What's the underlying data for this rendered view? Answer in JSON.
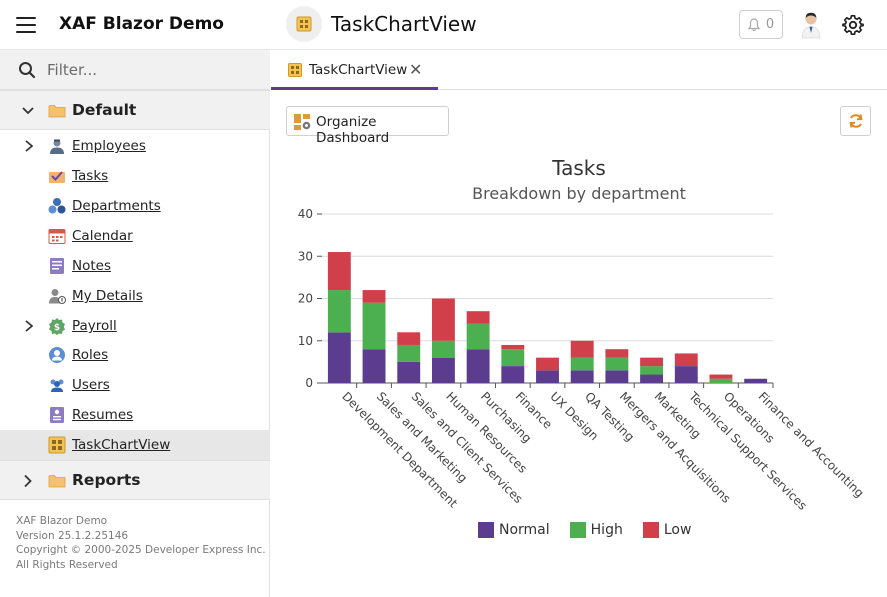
{
  "header": {
    "app_title": "XAF Blazor Demo",
    "view_title": "TaskChartView",
    "notification_count": "0"
  },
  "sidebar": {
    "filter_placeholder": "Filter...",
    "groups": [
      {
        "label": "Default"
      },
      {
        "label": "Reports"
      }
    ],
    "items": [
      {
        "label": "Employees",
        "icon": "employees-icon"
      },
      {
        "label": "Tasks",
        "icon": "tasks-icon"
      },
      {
        "label": "Departments",
        "icon": "departments-icon"
      },
      {
        "label": "Calendar",
        "icon": "calendar-icon"
      },
      {
        "label": "Notes",
        "icon": "notes-icon"
      },
      {
        "label": "My Details",
        "icon": "my-details-icon"
      },
      {
        "label": "Payroll",
        "icon": "payroll-icon"
      },
      {
        "label": "Roles",
        "icon": "roles-icon"
      },
      {
        "label": "Users",
        "icon": "users-icon"
      },
      {
        "label": "Resumes",
        "icon": "resumes-icon"
      },
      {
        "label": "TaskChartView",
        "icon": "chart-view-icon"
      }
    ],
    "footer": {
      "line1": "XAF Blazor Demo",
      "line2": "Version 25.1.2.25146",
      "line3": "Copyright © 2000-2025 Developer Express Inc.",
      "line4": "All Rights Reserved"
    }
  },
  "tabs": [
    {
      "label": "TaskChartView"
    }
  ],
  "toolbar": {
    "organize_label": "Organize Dashboard"
  },
  "colors": {
    "normal": "#5c3c8f",
    "high": "#4caf50",
    "low": "#d13f4b",
    "accent": "#5c3c8f"
  },
  "chart_data": {
    "type": "bar",
    "stacked": true,
    "title": "Tasks",
    "subtitle": "Breakdown by department",
    "xlabel": "",
    "ylabel": "",
    "ylim": [
      0,
      40
    ],
    "yticks": [
      0,
      10,
      20,
      30,
      40
    ],
    "grid": true,
    "legend_position": "bottom",
    "categories": [
      "Development Department",
      "Sales and Marketing",
      "Sales and Client Services",
      "Human Resources",
      "Purchasing",
      "Finance",
      "UX Design",
      "QA Testing",
      "Mergers and Acquisitions",
      "Marketing",
      "Technical Support Services",
      "Operations",
      "Finance and Accounting"
    ],
    "series": [
      {
        "name": "Normal",
        "color": "#5c3c8f",
        "values": [
          12,
          8,
          5,
          6,
          8,
          4,
          3,
          3,
          3,
          2,
          4,
          0,
          1
        ]
      },
      {
        "name": "High",
        "color": "#4caf50",
        "values": [
          10,
          11,
          4,
          4,
          6,
          4,
          0,
          3,
          3,
          2,
          0,
          1,
          0
        ]
      },
      {
        "name": "Low",
        "color": "#d13f4b",
        "values": [
          9,
          3,
          3,
          10,
          3,
          1,
          3,
          4,
          2,
          2,
          3,
          1,
          0
        ]
      }
    ]
  }
}
